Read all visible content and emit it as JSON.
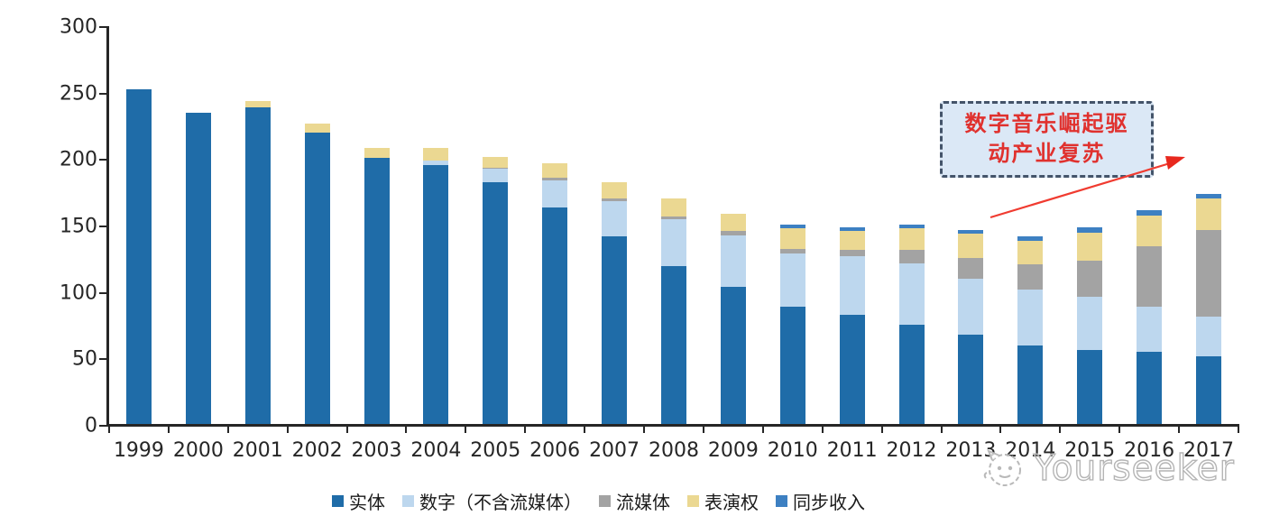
{
  "chart_data": {
    "type": "bar",
    "stacked": true,
    "title": "",
    "xlabel": "",
    "ylabel": "",
    "ylim": [
      0,
      300
    ],
    "yticks": [
      0,
      50,
      100,
      150,
      200,
      250,
      300
    ],
    "grid": false,
    "legend_position": "bottom",
    "categories": [
      "1999",
      "2000",
      "2001",
      "2002",
      "2003",
      "2004",
      "2005",
      "2006",
      "2007",
      "2008",
      "2009",
      "2010",
      "2011",
      "2012",
      "2013",
      "2014",
      "2015",
      "2016",
      "2017"
    ],
    "series": [
      {
        "name": "实体",
        "color": "#1F6CA8",
        "values": [
          252,
          234,
          238,
          219,
          200,
          195,
          182,
          163,
          141,
          119,
          103,
          88,
          82,
          75,
          67,
          59,
          56,
          54,
          51
        ]
      },
      {
        "name": "数字（不含流媒体）",
        "color": "#BDD7EE",
        "values": [
          0,
          0,
          0,
          0,
          0,
          3,
          10,
          20,
          27,
          35,
          39,
          40,
          44,
          46,
          42,
          42,
          40,
          34,
          30
        ]
      },
      {
        "name": "流媒体",
        "color": "#A3A3A3",
        "values": [
          0,
          0,
          0,
          0,
          0,
          0,
          1,
          2,
          2,
          2,
          3,
          4,
          5,
          10,
          16,
          19,
          27,
          46,
          65
        ]
      },
      {
        "name": "表演权",
        "color": "#EBD892",
        "values": [
          0,
          0,
          5,
          7,
          8,
          10,
          8,
          11,
          12,
          14,
          13,
          15,
          14,
          16,
          18,
          18,
          21,
          23,
          24
        ]
      },
      {
        "name": "同步收入",
        "color": "#3D80C2",
        "values": [
          0,
          0,
          0,
          0,
          0,
          0,
          0,
          0,
          0,
          0,
          0,
          3,
          3,
          3,
          3,
          3,
          4,
          4,
          3
        ]
      }
    ]
  },
  "annotation": {
    "lines": [
      "数字音乐崛起驱",
      "动产业复苏"
    ],
    "text_color": "#E0312E",
    "box_fill": "#DBE8F6",
    "box_border": "#44546A",
    "arrow_color": "#F03B30"
  },
  "watermark": {
    "text": "Yourseeker",
    "logo": "cat-face-logo",
    "color": "#b5b5b5"
  }
}
